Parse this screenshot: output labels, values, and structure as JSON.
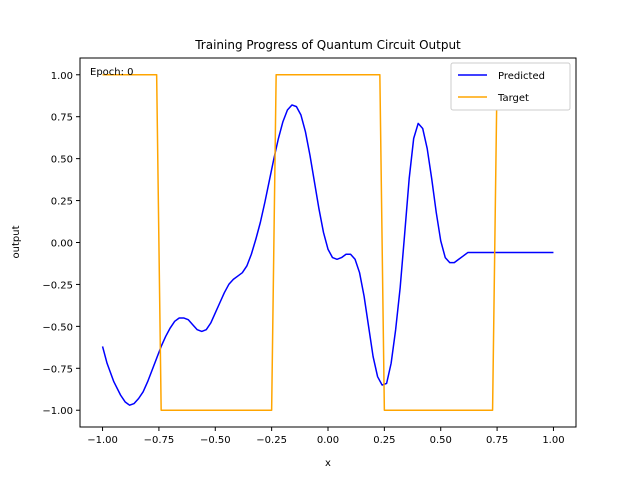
{
  "chart_data": {
    "type": "line",
    "title": "Training Progress of Quantum Circuit Output",
    "xlabel": "x",
    "ylabel": "output",
    "xlim": [
      -1.1,
      1.1
    ],
    "ylim": [
      -1.1,
      1.1
    ],
    "xticks": [
      -1.0,
      -0.75,
      -0.5,
      -0.25,
      0.0,
      0.25,
      0.5,
      0.75,
      1.0
    ],
    "xtick_labels": [
      "−1.00",
      "−0.75",
      "−0.50",
      "−0.25",
      "0.00",
      "0.25",
      "0.50",
      "0.75",
      "1.00"
    ],
    "yticks": [
      -1.0,
      -0.75,
      -0.5,
      -0.25,
      0.0,
      0.25,
      0.5,
      0.75,
      1.0
    ],
    "ytick_labels": [
      "−1.00",
      "−0.75",
      "−0.50",
      "−0.25",
      "0.00",
      "0.25",
      "0.50",
      "0.75",
      "1.00"
    ],
    "grid": false,
    "legend_position": "top-right",
    "annotation": "Epoch: 0",
    "series": [
      {
        "name": "Predicted",
        "color": "#0000ff",
        "x": [
          -1.0,
          -0.98,
          -0.95,
          -0.92,
          -0.9,
          -0.88,
          -0.86,
          -0.84,
          -0.82,
          -0.8,
          -0.78,
          -0.76,
          -0.74,
          -0.72,
          -0.7,
          -0.68,
          -0.66,
          -0.64,
          -0.62,
          -0.6,
          -0.58,
          -0.56,
          -0.54,
          -0.52,
          -0.5,
          -0.48,
          -0.46,
          -0.44,
          -0.42,
          -0.4,
          -0.38,
          -0.36,
          -0.34,
          -0.32,
          -0.3,
          -0.28,
          -0.26,
          -0.24,
          -0.22,
          -0.2,
          -0.18,
          -0.16,
          -0.14,
          -0.12,
          -0.1,
          -0.08,
          -0.06,
          -0.04,
          -0.02,
          0.0,
          0.02,
          0.04,
          0.06,
          0.08,
          0.1,
          0.12,
          0.14,
          0.16,
          0.18,
          0.2,
          0.22,
          0.24,
          0.26,
          0.28,
          0.3,
          0.32,
          0.34,
          0.36,
          0.38,
          0.4,
          0.42,
          0.44,
          0.46,
          0.48,
          0.5,
          0.52,
          0.54,
          0.56,
          0.58,
          0.6,
          0.62,
          0.64,
          0.66,
          0.68,
          0.7,
          0.72,
          0.74,
          0.76,
          0.78,
          0.8,
          0.82,
          0.84,
          0.86,
          0.88,
          0.9,
          0.92,
          0.94,
          0.96,
          0.98,
          1.0
        ],
        "y": [
          -0.62,
          -0.72,
          -0.83,
          -0.91,
          -0.95,
          -0.97,
          -0.96,
          -0.93,
          -0.89,
          -0.83,
          -0.76,
          -0.69,
          -0.62,
          -0.56,
          -0.51,
          -0.47,
          -0.45,
          -0.45,
          -0.46,
          -0.49,
          -0.52,
          -0.53,
          -0.52,
          -0.48,
          -0.42,
          -0.36,
          -0.3,
          -0.25,
          -0.22,
          -0.2,
          -0.18,
          -0.14,
          -0.07,
          0.02,
          0.12,
          0.24,
          0.37,
          0.5,
          0.62,
          0.72,
          0.79,
          0.82,
          0.81,
          0.76,
          0.66,
          0.52,
          0.36,
          0.2,
          0.06,
          -0.04,
          -0.09,
          -0.1,
          -0.09,
          -0.07,
          -0.07,
          -0.1,
          -0.18,
          -0.32,
          -0.5,
          -0.68,
          -0.8,
          -0.85,
          -0.84,
          -0.72,
          -0.52,
          -0.27,
          0.05,
          0.38,
          0.62,
          0.71,
          0.68,
          0.56,
          0.38,
          0.18,
          0.01,
          -0.09,
          -0.12,
          -0.12,
          -0.1,
          -0.08,
          -0.06,
          -0.06,
          -0.06,
          -0.06,
          -0.06,
          -0.06,
          -0.06,
          -0.06,
          -0.06,
          -0.06,
          -0.06,
          -0.06,
          -0.06,
          -0.06,
          -0.06,
          -0.06,
          -0.06,
          -0.06,
          -0.06,
          -0.06
        ]
      },
      {
        "name": "Target",
        "color": "#ffa500",
        "x": [
          -1.0,
          -0.76,
          -0.74,
          -0.25,
          -0.23,
          0.23,
          0.25,
          0.73,
          0.75,
          1.0
        ],
        "y": [
          1.0,
          1.0,
          -1.0,
          -1.0,
          1.0,
          1.0,
          -1.0,
          -1.0,
          1.0,
          1.0
        ]
      }
    ]
  }
}
